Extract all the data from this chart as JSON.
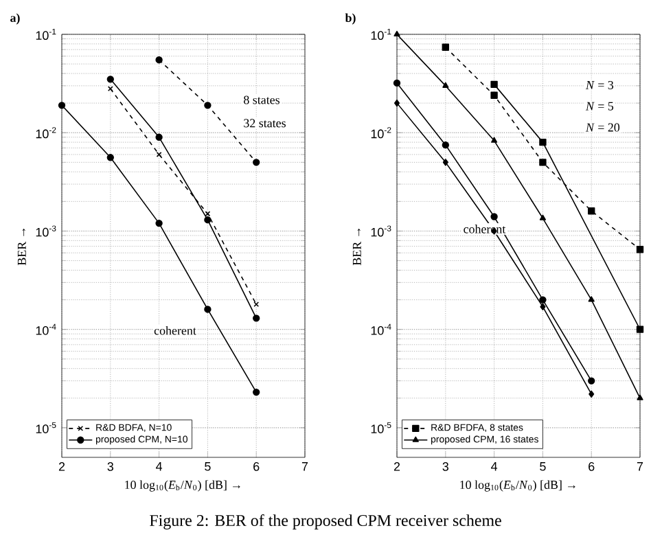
{
  "chart_data": [
    {
      "type": "line",
      "title": "a)",
      "xlabel": "10 log$_{10}$(*E*$_{b}$/*N*$_{0}$) [dB] →",
      "ylabel": "BER →",
      "log": "y",
      "grid": true,
      "legend": "bottom left",
      "xlim": [
        2,
        7
      ],
      "ylim": [
        5e-06,
        0.1
      ],
      "xticks": [
        2,
        3,
        4,
        5,
        6,
        7
      ],
      "yticks": [
        {
          "value": 1e-05,
          "label": "10$^{-5}$"
        },
        {
          "value": 0.0001,
          "label": "10$^{-4}$"
        },
        {
          "value": 0.001,
          "label": "10$^{-3}$"
        },
        {
          "value": 0.01,
          "label": "10$^{-2}$"
        },
        {
          "value": 0.1,
          "label": "10$^{-1}$"
        }
      ],
      "series": [
        {
          "name": "R&D BDFA, N=10",
          "color": "#000000",
          "line_style": "dashed",
          "marker": "cross",
          "x": [
            3,
            4,
            5,
            6
          ],
          "values": [
            0.028,
            0.006,
            0.0015,
            0.00018
          ]
        },
        {
          "name": "proposed CPM, N=10",
          "color": "#000000",
          "line_style": "solid",
          "marker": "circle",
          "x": [
            3,
            4,
            5,
            6
          ],
          "values": [
            0.035,
            0.009,
            0.0013,
            0.00013
          ]
        },
        {
          "color": "#000000",
          "line_style": "solid",
          "marker": "circle",
          "x": [
            2,
            3,
            4,
            5,
            6
          ],
          "values": [
            0.019,
            0.0056,
            0.0012,
            0.00016,
            2.3e-05
          ]
        },
        {
          "color": "#000000",
          "line_style": "dashed",
          "marker": "circle",
          "x": [
            4,
            5,
            6
          ],
          "values": [
            0.055,
            0.019,
            0.005
          ]
        }
      ],
      "annotations": [
        "8 states",
        "32 states",
        "coherent",
        "Figure 2: BER of the proposed CPM receiver scheme"
      ]
    },
    {
      "type": "line",
      "title": "b)",
      "xlabel": "10 log$_{10}$(*E*$_{b}$/*N*$_{0}$) [dB] →",
      "ylabel": "BER →",
      "log": "y",
      "grid": true,
      "legend": "bottom left",
      "xlim": [
        2,
        7
      ],
      "ylim": [
        5e-06,
        0.1
      ],
      "xticks": [
        2,
        3,
        4,
        5,
        6,
        7
      ],
      "yticks": [
        {
          "value": 1e-05,
          "label": "10$^{-5}$"
        },
        {
          "value": 0.0001,
          "label": "10$^{-4}$"
        },
        {
          "value": 0.001,
          "label": "10$^{-3}$"
        },
        {
          "value": 0.01,
          "label": "10$^{-2}$"
        },
        {
          "value": 0.1,
          "label": "10$^{-1}$"
        }
      ],
      "series": [
        {
          "name": "R&D BFDFA, 8 states",
          "color": "#000000",
          "line_style": "dashed",
          "marker": "square",
          "x": [
            3,
            4,
            5,
            6,
            7
          ],
          "values": [
            0.074,
            0.024,
            0.005,
            0.0016,
            0.00065
          ]
        },
        {
          "name": "proposed CPM, 16 states",
          "color": "#000000",
          "line_style": "solid",
          "marker": "triangle",
          "x": [
            2,
            3,
            4,
            5,
            6,
            7
          ],
          "values": [
            0.1,
            0.03,
            0.0083,
            0.00135,
            0.0002,
            2e-05
          ]
        },
        {
          "color": "#000000",
          "line_style": "solid",
          "marker": "square",
          "x": [
            4,
            5,
            7
          ],
          "values": [
            0.031,
            0.008,
            0.0001
          ]
        },
        {
          "color": "#000000",
          "line_style": "solid",
          "marker": "circle",
          "x": [
            2,
            3,
            4,
            5,
            6
          ],
          "values": [
            0.032,
            0.0075,
            0.0014,
            0.0002,
            3e-05
          ]
        },
        {
          "color": "#000000",
          "line_style": "solid",
          "marker": "diamond",
          "x": [
            2,
            3,
            4,
            5,
            6
          ],
          "values": [
            0.02,
            0.005,
            0.001,
            0.00017,
            2.2e-05
          ]
        }
      ],
      "annotations": [
        "*N* = 3",
        "*N* = 5",
        "*N* = 20",
        "coherent"
      ]
    }
  ]
}
